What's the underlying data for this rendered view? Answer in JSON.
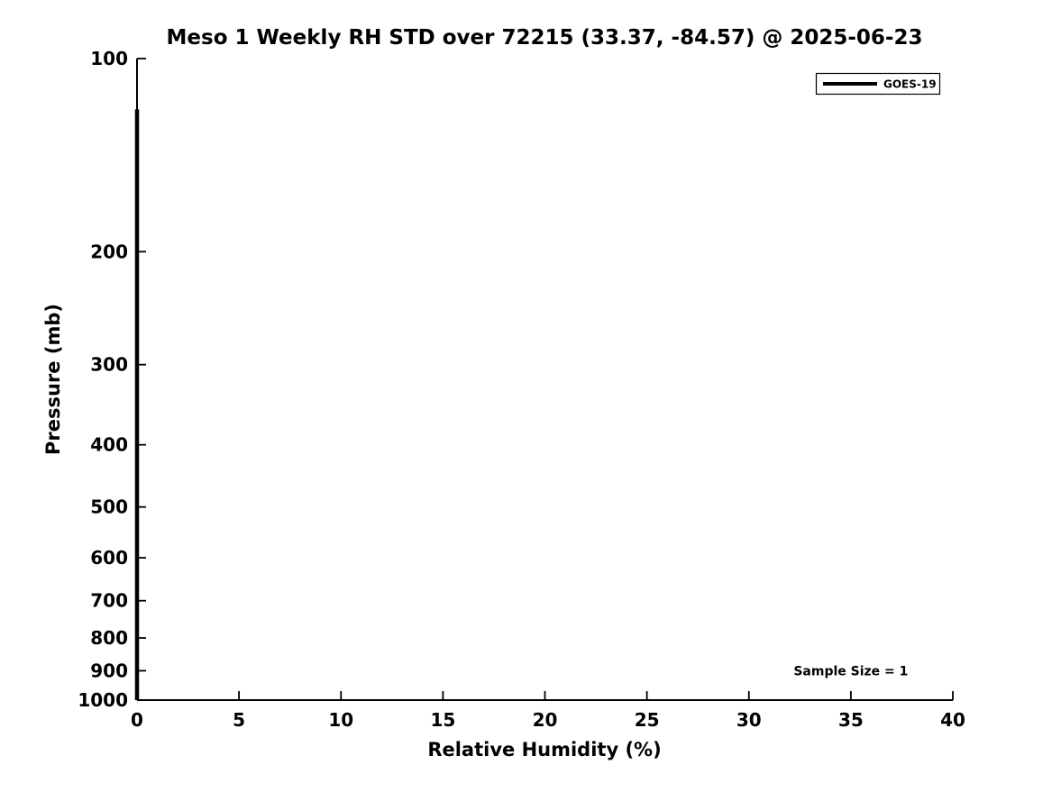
{
  "page": {
    "background": "#ffffff",
    "text_color": "#000000"
  },
  "chart_data": {
    "type": "line",
    "title": "Meso 1 Weekly RH STD over 72215 (33.37, -84.57) @ 2025-06-23",
    "xlabel": "Relative Humidity (%)",
    "ylabel": "Pressure (mb)",
    "xlim": [
      0,
      40
    ],
    "x_ticks": [
      0,
      5,
      10,
      15,
      20,
      25,
      30,
      35,
      40
    ],
    "ylim": [
      100,
      1000
    ],
    "y_ticks": [
      100,
      200,
      300,
      400,
      500,
      600,
      700,
      800,
      900,
      1000
    ],
    "y_scale": "log",
    "y_inverted": true,
    "grid": false,
    "axis_color": "#000000",
    "series": [
      {
        "name": "GOES-19",
        "color": "#000000",
        "line_width": 4.5,
        "points": [
          {
            "x": 0,
            "y": 120
          },
          {
            "x": 0,
            "y": 1000
          }
        ]
      }
    ],
    "legend": {
      "position": "upper right",
      "entries": [
        {
          "label": "GOES-19",
          "color": "#000000"
        }
      ]
    },
    "annotations": [
      {
        "text": "Sample Size = 1",
        "x": 35,
        "y": 900
      }
    ]
  }
}
